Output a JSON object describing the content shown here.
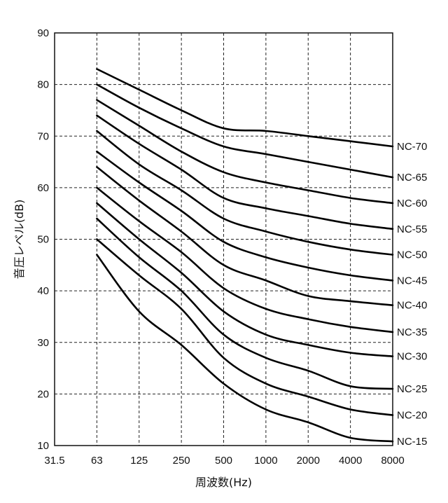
{
  "chart_data": {
    "type": "line",
    "xlabel": "周波数(Hz)",
    "ylabel": "音圧レベル(dB)",
    "x_scale": "log2",
    "categories": [
      "31.5",
      "63",
      "125",
      "250",
      "500",
      "1000",
      "2000",
      "4000",
      "8000"
    ],
    "ylim": [
      10,
      90
    ],
    "yticks": [
      "10",
      "20",
      "30",
      "40",
      "50",
      "60",
      "70",
      "80",
      "90"
    ],
    "grid": true,
    "series": [
      {
        "name": "NC-70",
        "x": [
          "63",
          "125",
          "250",
          "500",
          "1000",
          "2000",
          "4000",
          "8000"
        ],
        "values": [
          83,
          79,
          75,
          71.5,
          71,
          70,
          69,
          68
        ]
      },
      {
        "name": "NC-65",
        "x": [
          "63",
          "125",
          "250",
          "500",
          "1000",
          "2000",
          "4000",
          "8000"
        ],
        "values": [
          80,
          75.5,
          71.5,
          68,
          66.5,
          65,
          63.5,
          62
        ]
      },
      {
        "name": "NC-60",
        "x": [
          "63",
          "125",
          "250",
          "500",
          "1000",
          "2000",
          "4000",
          "8000"
        ],
        "values": [
          77,
          72,
          67,
          63,
          61,
          59.5,
          58,
          57
        ]
      },
      {
        "name": "NC-55",
        "x": [
          "63",
          "125",
          "250",
          "500",
          "1000",
          "2000",
          "4000",
          "8000"
        ],
        "values": [
          74,
          68.5,
          63.5,
          58,
          56,
          54.5,
          53,
          52
        ]
      },
      {
        "name": "NC-50",
        "x": [
          "63",
          "125",
          "250",
          "500",
          "1000",
          "2000",
          "4000",
          "8000"
        ],
        "values": [
          71,
          64.5,
          59.5,
          54,
          51.5,
          49.5,
          48,
          47
        ]
      },
      {
        "name": "NC-45",
        "x": [
          "63",
          "125",
          "250",
          "500",
          "1000",
          "2000",
          "4000",
          "8000"
        ],
        "values": [
          67,
          61,
          55.5,
          49.5,
          46.5,
          44.5,
          43,
          42
        ]
      },
      {
        "name": "NC-40",
        "x": [
          "63",
          "125",
          "250",
          "500",
          "1000",
          "2000",
          "4000",
          "8000"
        ],
        "values": [
          64,
          57.5,
          51.5,
          45,
          42,
          39,
          38,
          37.2
        ]
      },
      {
        "name": "NC-35",
        "x": [
          "63",
          "125",
          "250",
          "500",
          "1000",
          "2000",
          "4000",
          "8000"
        ],
        "values": [
          60,
          53.5,
          47.5,
          40.5,
          36.5,
          34.5,
          33,
          32
        ]
      },
      {
        "name": "NC-30",
        "x": [
          "63",
          "125",
          "250",
          "500",
          "1000",
          "2000",
          "4000",
          "8000"
        ],
        "values": [
          57,
          50,
          43.5,
          36,
          31.5,
          29.5,
          28,
          27.3
        ]
      },
      {
        "name": "NC-25",
        "x": [
          "63",
          "125",
          "250",
          "500",
          "1000",
          "2000",
          "4000",
          "8000"
        ],
        "values": [
          54,
          46.5,
          40,
          31.5,
          27,
          24.5,
          21.5,
          21
        ]
      },
      {
        "name": "NC-20",
        "x": [
          "63",
          "125",
          "250",
          "500",
          "1000",
          "2000",
          "4000",
          "8000"
        ],
        "values": [
          50,
          43,
          36.5,
          27,
          22,
          19.5,
          17,
          15.9
        ]
      },
      {
        "name": "NC-15",
        "x": [
          "63",
          "125",
          "250",
          "500",
          "1000",
          "2000",
          "4000",
          "8000"
        ],
        "values": [
          47,
          36,
          29.5,
          22,
          17,
          14.5,
          11.5,
          10.8
        ]
      }
    ]
  }
}
